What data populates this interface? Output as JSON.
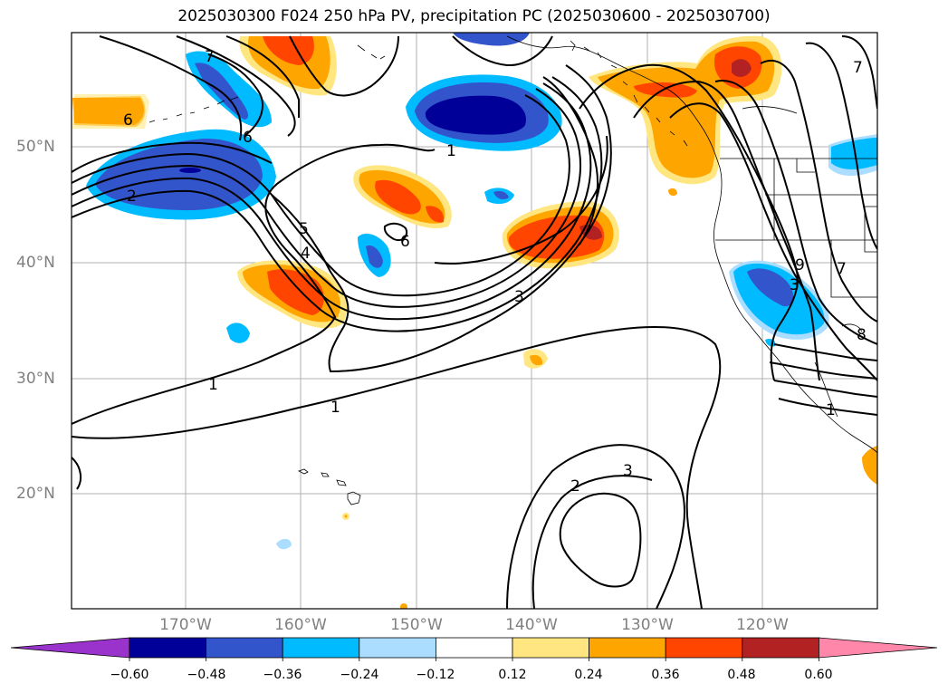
{
  "title": "2025030300 F024 250 hPa PV, precipitation PC (2025030600 - 2025030700)",
  "lat_labels": [
    "50°N",
    "40°N",
    "30°N",
    "20°N"
  ],
  "lon_labels": [
    "170°W",
    "160°W",
    "150°W",
    "140°W",
    "130°W",
    "120°W"
  ],
  "colorbar": {
    "tick_labels": [
      "−0.60",
      "−0.48",
      "−0.36",
      "−0.24",
      "−0.12",
      "0.12",
      "0.24",
      "0.36",
      "0.48",
      "0.60"
    ],
    "colors": [
      "#9933cc",
      "#000099",
      "#3355cc",
      "#00bbff",
      "#aaddff",
      "#ffffff",
      "#ffe680",
      "#ffa500",
      "#ff4500",
      "#b22222",
      "#ff88aa"
    ]
  },
  "contour_labels": [
    "1",
    "1",
    "1",
    "1",
    "2",
    "2",
    "3",
    "3",
    "3",
    "4",
    "5",
    "6",
    "6",
    "6",
    "7",
    "7",
    "7",
    "8",
    "9"
  ]
}
